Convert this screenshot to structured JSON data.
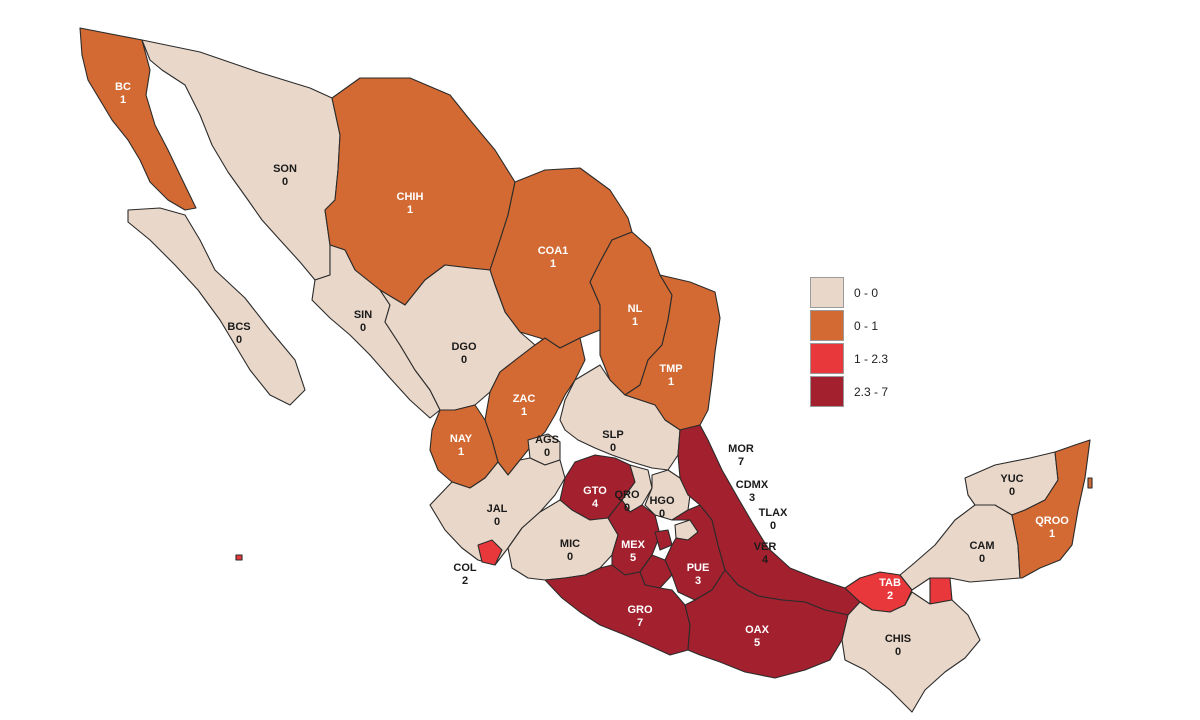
{
  "legend": {
    "items": [
      {
        "label": "0 - 0",
        "color": "#e9d7c9"
      },
      {
        "label": "0 - 1",
        "color": "#d36a33"
      },
      {
        "label": "1 - 2.3",
        "color": "#e8383b"
      },
      {
        "label": "2.3 - 7",
        "color": "#a3202e"
      }
    ]
  },
  "states": [
    {
      "abbr": "BC",
      "value": "1",
      "class": "0 - 1"
    },
    {
      "abbr": "SON",
      "value": "0",
      "class": "0 - 0"
    },
    {
      "abbr": "CHIH",
      "value": "1",
      "class": "0 - 1"
    },
    {
      "abbr": "COA1",
      "value": "1",
      "class": "0 - 1"
    },
    {
      "abbr": "NL",
      "value": "1",
      "class": "0 - 1"
    },
    {
      "abbr": "TMP",
      "value": "1",
      "class": "0 - 1"
    },
    {
      "abbr": "BCS",
      "value": "0",
      "class": "0 - 0"
    },
    {
      "abbr": "SIN",
      "value": "0",
      "class": "0 - 0"
    },
    {
      "abbr": "DGO",
      "value": "0",
      "class": "0 - 0"
    },
    {
      "abbr": "ZAC",
      "value": "1",
      "class": "0 - 1"
    },
    {
      "abbr": "NAY",
      "value": "1",
      "class": "0 - 1"
    },
    {
      "abbr": "AGS",
      "value": "0",
      "class": "0 - 0"
    },
    {
      "abbr": "SLP",
      "value": "0",
      "class": "0 - 0"
    },
    {
      "abbr": "MOR",
      "value": "7",
      "class": "2.3 - 7"
    },
    {
      "abbr": "CDMX",
      "value": "3",
      "class": "2.3 - 7"
    },
    {
      "abbr": "TLAX",
      "value": "0",
      "class": "0 - 0"
    },
    {
      "abbr": "VER",
      "value": "4",
      "class": "2.3 - 7"
    },
    {
      "abbr": "GTO",
      "value": "4",
      "class": "2.3 - 7"
    },
    {
      "abbr": "QRO",
      "value": "0",
      "class": "0 - 0"
    },
    {
      "abbr": "HGO",
      "value": "0",
      "class": "0 - 0"
    },
    {
      "abbr": "JAL",
      "value": "0",
      "class": "0 - 0"
    },
    {
      "abbr": "MIC",
      "value": "0",
      "class": "0 - 0"
    },
    {
      "abbr": "MEX",
      "value": "5",
      "class": "2.3 - 7"
    },
    {
      "abbr": "PUE",
      "value": "3",
      "class": "2.3 - 7"
    },
    {
      "abbr": "COL",
      "value": "2",
      "class": "1 - 2.3"
    },
    {
      "abbr": "GRO",
      "value": "7",
      "class": "2.3 - 7"
    },
    {
      "abbr": "OAX",
      "value": "5",
      "class": "2.3 - 7"
    },
    {
      "abbr": "TAB",
      "value": "2",
      "class": "1 - 2.3"
    },
    {
      "abbr": "CHIS",
      "value": "0",
      "class": "0 - 0"
    },
    {
      "abbr": "CAM",
      "value": "0",
      "class": "0 - 0"
    },
    {
      "abbr": "YUC",
      "value": "0",
      "class": "0 - 0"
    },
    {
      "abbr": "QROO",
      "value": "1",
      "class": "0 - 1"
    }
  ]
}
